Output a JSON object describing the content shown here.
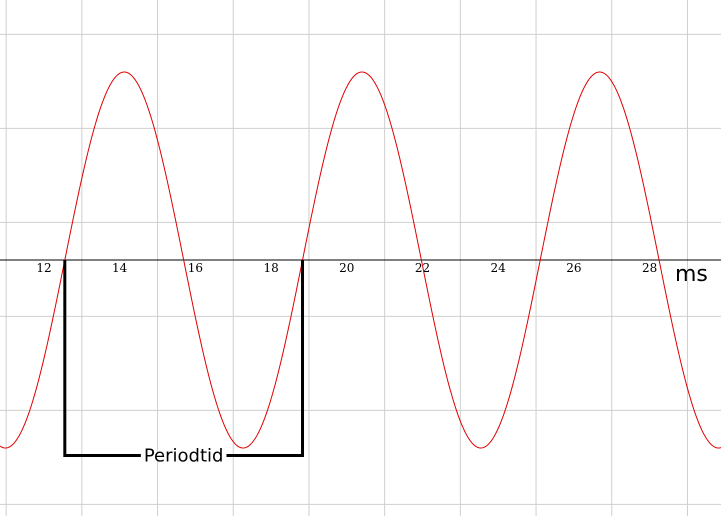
{
  "chart_data": {
    "type": "line",
    "title": "",
    "xlabel": "ms",
    "ylabel": "",
    "xlim": [
      11,
      30
    ],
    "ylim": [
      -1.3,
      1.7
    ],
    "grid": true,
    "x_ticks": [
      12,
      14,
      16,
      18,
      20,
      22,
      24,
      26,
      28
    ],
    "x_tick_labels": [
      "12",
      "14",
      "16",
      "18",
      "20",
      "22",
      "24",
      "26",
      "28"
    ],
    "y_grid_step": 0.5,
    "series": [
      {
        "function": "sine",
        "amplitude": 1,
        "period_ms": 6.28,
        "zero_crossing_rising_ms": 12.55,
        "color": "#e00000"
      }
    ],
    "annotation": {
      "label": "Periodtid",
      "x_start": 12.55,
      "x_end": 18.83,
      "y": -1.04,
      "color": "#000000"
    }
  }
}
